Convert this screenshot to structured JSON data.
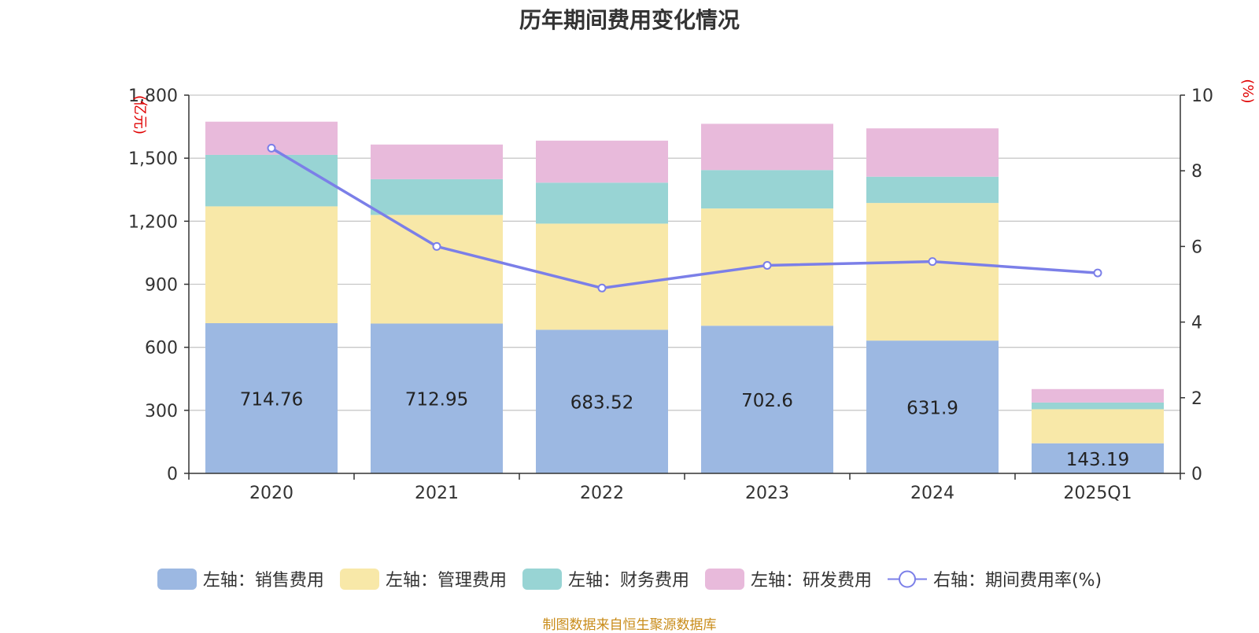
{
  "chart_data": {
    "type": "bar",
    "title": "历年期间费用变化情况",
    "categories": [
      "2020",
      "2021",
      "2022",
      "2023",
      "2024",
      "2025Q1"
    ],
    "stacked": true,
    "y_left": {
      "unit": "(亿元)",
      "range": [
        0,
        1800
      ],
      "ticks": [
        "0",
        "300",
        "600",
        "900",
        "1,200",
        "1,500",
        "1,800"
      ]
    },
    "y_right": {
      "unit": "(%)",
      "range": [
        0,
        10
      ],
      "ticks": [
        "0",
        "2",
        "4",
        "6",
        "8",
        "10"
      ]
    },
    "series": [
      {
        "name": "左轴：销售费用",
        "axis": "left",
        "color": "#9cb8e2",
        "values": [
          714.76,
          712.95,
          683.52,
          702.6,
          631.9,
          143.19
        ],
        "labels": [
          "714.76",
          "712.95",
          "683.52",
          "702.6",
          "631.9",
          "143.19"
        ]
      },
      {
        "name": "左轴：管理费用",
        "axis": "left",
        "color": "#f8e8a8",
        "values": [
          556,
          517,
          505,
          558,
          655,
          162
        ]
      },
      {
        "name": "左轴：财务费用",
        "axis": "left",
        "color": "#98d4d4",
        "values": [
          245,
          170,
          195,
          183,
          125,
          32
        ]
      },
      {
        "name": "左轴：研发费用",
        "axis": "left",
        "color": "#e8badb",
        "values": [
          158,
          165,
          200,
          220,
          230,
          64
        ]
      },
      {
        "name": "右轴：期间费用率(%)",
        "axis": "right",
        "type": "line",
        "color": "#7b7fe8",
        "values": [
          8.6,
          6.0,
          4.9,
          5.5,
          5.6,
          5.3
        ]
      }
    ],
    "grid": true,
    "legend_position": "bottom"
  },
  "source_note": "制图数据来自恒生聚源数据库"
}
